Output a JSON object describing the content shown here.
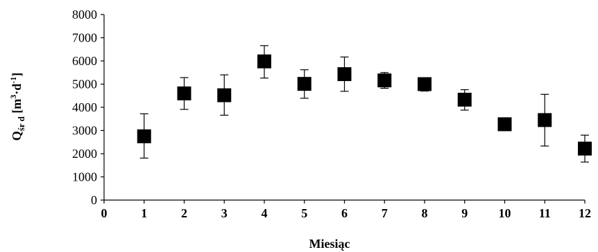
{
  "chart_data": {
    "type": "scatter",
    "title": "",
    "xlabel": "Miesiąc",
    "ylabel": {
      "main": "Q",
      "sub": "śr d",
      "unit_open": " [m",
      "unit_sup1": "3",
      "unit_mid": "·d",
      "unit_sup2": "-1",
      "unit_close": "]"
    },
    "xlim": [
      0,
      12
    ],
    "ylim": [
      0,
      8000
    ],
    "x_ticks": [
      0,
      1,
      2,
      3,
      4,
      5,
      6,
      7,
      8,
      9,
      10,
      11,
      12
    ],
    "y_ticks": [
      0,
      1000,
      2000,
      3000,
      4000,
      5000,
      6000,
      7000,
      8000
    ],
    "grid": false,
    "legend": "none",
    "marker": "square",
    "marker_color": "#000000",
    "series": [
      {
        "x": [
          1,
          2,
          3,
          4,
          5,
          6,
          7,
          8,
          9,
          10,
          11,
          12
        ],
        "y": [
          2750,
          4600,
          4520,
          5980,
          5010,
          5430,
          5160,
          5000,
          4330,
          3270,
          3450,
          2220
        ],
        "y_err_high": [
          3720,
          5280,
          5400,
          6660,
          5620,
          6170,
          5500,
          5250,
          4760,
          3380,
          4560,
          2800
        ],
        "y_err_low": [
          1810,
          3910,
          3660,
          5260,
          4390,
          4690,
          4820,
          4700,
          3880,
          3180,
          2330,
          1640
        ]
      }
    ]
  }
}
